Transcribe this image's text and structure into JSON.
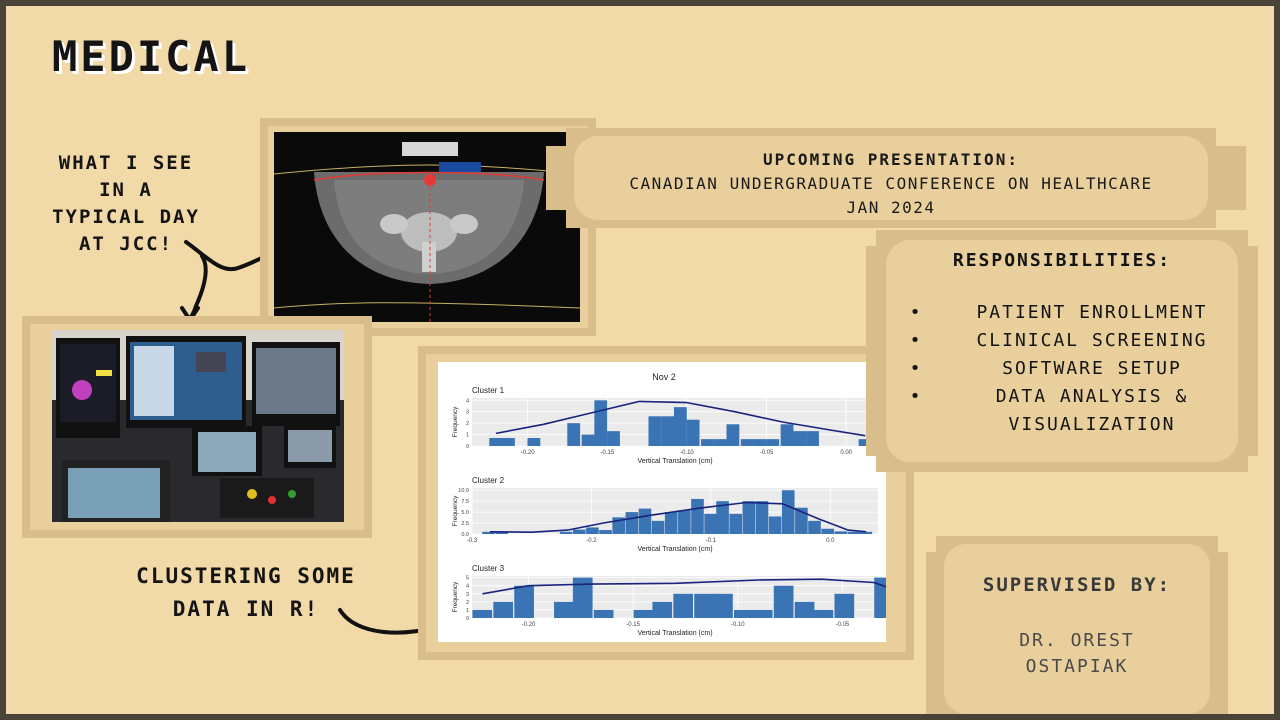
{
  "heading": "MEDICAL",
  "annotations": {
    "typical_day": [
      "WHAT I SEE",
      "IN A",
      "TYPICAL DAY",
      "AT JCC!"
    ],
    "clustering": [
      "CLUSTERING SOME",
      "DATA IN R!"
    ]
  },
  "presentation": {
    "heading": "UPCOMING PRESENTATION:",
    "conference": "CANADIAN UNDERGRADUATE CONFERENCE ON HEALTHCARE",
    "date": "JAN 2024"
  },
  "responsibilities": {
    "heading": "RESPONSIBILITIES:",
    "items": [
      "PATIENT ENROLLMENT",
      "CLINICAL SCREENING",
      "SOFTWARE SETUP",
      "DATA ANALYSIS &",
      "VISUALIZATION"
    ]
  },
  "supervisor": {
    "heading": "SUPERVISED BY:",
    "name_line1": "DR. OREST",
    "name_line2": "OSTAPIAK"
  },
  "colors": {
    "background": "#f2d9a8",
    "frame": "#d9bd8a",
    "bar": "#3a74b4",
    "curve": "#1a237e"
  },
  "chart_data": {
    "type": "bar",
    "title": "Nov 2",
    "xlabel": "Vertical Translation (cm)",
    "ylabel": "Frequency",
    "panels": [
      {
        "name": "Cluster 1",
        "xlim": [
          -0.235,
          0.02
        ],
        "ylim": [
          0,
          4.2
        ],
        "xticks": [
          -0.2,
          -0.15,
          -0.1,
          -0.05,
          0.0
        ],
        "xtick_labels": [
          "-0.20",
          "-0.15",
          "-0.10",
          "-0.05",
          "0.00"
        ],
        "yticks": [
          0,
          1,
          2,
          3,
          4
        ],
        "binwidth": 0.0083,
        "bins": [
          {
            "x": -0.22,
            "y": 0.7
          },
          {
            "x": -0.212,
            "y": 0.7
          },
          {
            "x": -0.196,
            "y": 0.7
          },
          {
            "x": -0.171,
            "y": 2.0
          },
          {
            "x": -0.162,
            "y": 1.0
          },
          {
            "x": -0.154,
            "y": 4.0
          },
          {
            "x": -0.146,
            "y": 1.3
          },
          {
            "x": -0.12,
            "y": 2.6
          },
          {
            "x": -0.112,
            "y": 2.6
          },
          {
            "x": -0.104,
            "y": 3.4
          },
          {
            "x": -0.096,
            "y": 2.3
          },
          {
            "x": -0.087,
            "y": 0.6
          },
          {
            "x": -0.079,
            "y": 0.6
          },
          {
            "x": -0.071,
            "y": 1.9
          },
          {
            "x": -0.062,
            "y": 0.6
          },
          {
            "x": -0.054,
            "y": 0.6
          },
          {
            "x": -0.046,
            "y": 0.6
          },
          {
            "x": -0.037,
            "y": 1.9
          },
          {
            "x": -0.029,
            "y": 1.3
          },
          {
            "x": -0.021,
            "y": 1.3
          },
          {
            "x": 0.012,
            "y": 0.6
          }
        ],
        "density": [
          [
            -0.22,
            1.1
          ],
          [
            -0.19,
            1.9
          ],
          [
            -0.16,
            2.9
          ],
          [
            -0.13,
            3.9
          ],
          [
            -0.1,
            3.8
          ],
          [
            -0.07,
            3.0
          ],
          [
            -0.04,
            2.1
          ],
          [
            -0.01,
            1.4
          ],
          [
            0.012,
            0.9
          ]
        ]
      },
      {
        "name": "Cluster 2",
        "xlim": [
          -0.3,
          0.04
        ],
        "ylim": [
          0,
          10.5
        ],
        "xticks": [
          -0.3,
          -0.2,
          -0.1,
          0.0
        ],
        "xtick_labels": [
          "-0.3",
          "-0.2",
          "-0.1",
          "0.0"
        ],
        "yticks": [
          0,
          2.5,
          5,
          7.5,
          10
        ],
        "ytick_labels": [
          "0.0",
          "2.5",
          "5.0",
          "7.5",
          "10.0"
        ],
        "binwidth": 0.0109,
        "bins": [
          {
            "x": -0.286,
            "y": 0.5
          },
          {
            "x": -0.275,
            "y": 0.5
          },
          {
            "x": -0.221,
            "y": 0.5
          },
          {
            "x": -0.21,
            "y": 1.0
          },
          {
            "x": -0.199,
            "y": 1.5
          },
          {
            "x": -0.188,
            "y": 0.9
          },
          {
            "x": -0.177,
            "y": 3.8
          },
          {
            "x": -0.166,
            "y": 5.0
          },
          {
            "x": -0.155,
            "y": 5.8
          },
          {
            "x": -0.144,
            "y": 3.0
          },
          {
            "x": -0.133,
            "y": 5.0
          },
          {
            "x": -0.122,
            "y": 5.4
          },
          {
            "x": -0.111,
            "y": 8.0
          },
          {
            "x": -0.1,
            "y": 4.6
          },
          {
            "x": -0.09,
            "y": 7.5
          },
          {
            "x": -0.079,
            "y": 4.6
          },
          {
            "x": -0.068,
            "y": 7.5
          },
          {
            "x": -0.057,
            "y": 7.5
          },
          {
            "x": -0.046,
            "y": 4.0
          },
          {
            "x": -0.035,
            "y": 10.0
          },
          {
            "x": -0.024,
            "y": 6.0
          },
          {
            "x": -0.013,
            "y": 3.0
          },
          {
            "x": -0.002,
            "y": 1.2
          },
          {
            "x": 0.009,
            "y": 0.6
          },
          {
            "x": 0.02,
            "y": 0.5
          },
          {
            "x": 0.03,
            "y": 0.5
          }
        ],
        "density": [
          [
            -0.285,
            0.5
          ],
          [
            -0.25,
            0.4
          ],
          [
            -0.22,
            0.9
          ],
          [
            -0.19,
            2.5
          ],
          [
            -0.15,
            4.3
          ],
          [
            -0.11,
            5.9
          ],
          [
            -0.07,
            7.2
          ],
          [
            -0.04,
            6.9
          ],
          [
            -0.01,
            3.5
          ],
          [
            0.015,
            0.9
          ],
          [
            0.03,
            0.5
          ]
        ]
      },
      {
        "name": "Cluster 3",
        "xlim": [
          -0.227,
          -0.033
        ],
        "ylim": [
          0,
          5.2
        ],
        "xticks": [
          -0.2,
          -0.15,
          -0.1,
          -0.05
        ],
        "xtick_labels": [
          "-0.20",
          "-0.15",
          "-0.10",
          "-0.05"
        ],
        "yticks": [
          0,
          1,
          2,
          3,
          4,
          5
        ],
        "binwidth": 0.0096,
        "bins": [
          {
            "x": -0.222,
            "y": 1.0
          },
          {
            "x": -0.212,
            "y": 2.0
          },
          {
            "x": -0.202,
            "y": 4.0
          },
          {
            "x": -0.183,
            "y": 2.0
          },
          {
            "x": -0.174,
            "y": 5.0
          },
          {
            "x": -0.164,
            "y": 1.0
          },
          {
            "x": -0.145,
            "y": 1.0
          },
          {
            "x": -0.136,
            "y": 2.0
          },
          {
            "x": -0.126,
            "y": 3.0
          },
          {
            "x": -0.116,
            "y": 3.0
          },
          {
            "x": -0.107,
            "y": 3.0
          },
          {
            "x": -0.097,
            "y": 1.0
          },
          {
            "x": -0.088,
            "y": 1.0
          },
          {
            "x": -0.078,
            "y": 4.0
          },
          {
            "x": -0.068,
            "y": 2.0
          },
          {
            "x": -0.059,
            "y": 1.0
          },
          {
            "x": -0.049,
            "y": 3.0
          },
          {
            "x": -0.03,
            "y": 5.0
          },
          {
            "x": -0.021,
            "y": 2.0
          }
        ],
        "density": [
          [
            -0.222,
            3.0
          ],
          [
            -0.2,
            4.0
          ],
          [
            -0.17,
            4.2
          ],
          [
            -0.13,
            4.3
          ],
          [
            -0.09,
            4.7
          ],
          [
            -0.06,
            4.8
          ],
          [
            -0.035,
            4.4
          ],
          [
            -0.024,
            3.4
          ]
        ]
      }
    ]
  }
}
